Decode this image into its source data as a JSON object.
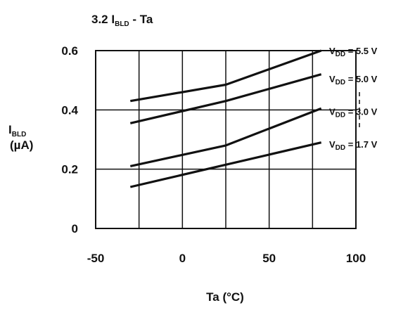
{
  "chart_data": {
    "type": "line",
    "title": {
      "prefix": "3.2 ",
      "base": "I",
      "sub": "BLD",
      "suffix": " - Ta"
    },
    "xlabel": "Ta (°C)",
    "ylabel": {
      "base": "I",
      "sub": "BLD",
      "unit": "(µA)"
    },
    "xlim": [
      -50,
      100
    ],
    "ylim": [
      0,
      0.6
    ],
    "x_grid": [
      -25,
      0,
      25,
      50,
      75
    ],
    "y_grid": [
      0.2,
      0.4
    ],
    "x_ticks": [
      {
        "value": -50,
        "label": "-50"
      },
      {
        "value": 0,
        "label": "0"
      },
      {
        "value": 50,
        "label": "50"
      },
      {
        "value": 100,
        "label": "100"
      }
    ],
    "y_ticks": [
      {
        "value": 0,
        "label": "0"
      },
      {
        "value": 0.2,
        "label": "0.2"
      },
      {
        "value": 0.4,
        "label": "0.4"
      },
      {
        "value": 0.6,
        "label": "0.6"
      }
    ],
    "series": [
      {
        "name": "VDD = 5.5 V",
        "label_base": "V",
        "label_sub": "DD",
        "label_value": " = 5.5 V",
        "label_at": 0.6,
        "x": [
          -30,
          25,
          80
        ],
        "y": [
          0.43,
          0.485,
          0.6
        ]
      },
      {
        "name": "VDD = 5.0 V",
        "label_base": "V",
        "label_sub": "DD",
        "label_value": " = 5.0 V",
        "label_at": 0.505,
        "x": [
          -30,
          25,
          80
        ],
        "y": [
          0.355,
          0.43,
          0.52
        ]
      },
      {
        "name": "VDD = 3.0 V",
        "label_base": "V",
        "label_sub": "DD",
        "label_value": " = 3.0 V",
        "label_at": 0.395,
        "x": [
          -30,
          25,
          80
        ],
        "y": [
          0.21,
          0.28,
          0.405
        ]
      },
      {
        "name": "VDD = 1.7 V",
        "label_base": "V",
        "label_sub": "DD",
        "label_value": " = 1.7 V",
        "label_at": 0.285,
        "x": [
          -30,
          25,
          80
        ],
        "y": [
          0.14,
          0.215,
          0.29
        ]
      }
    ]
  }
}
